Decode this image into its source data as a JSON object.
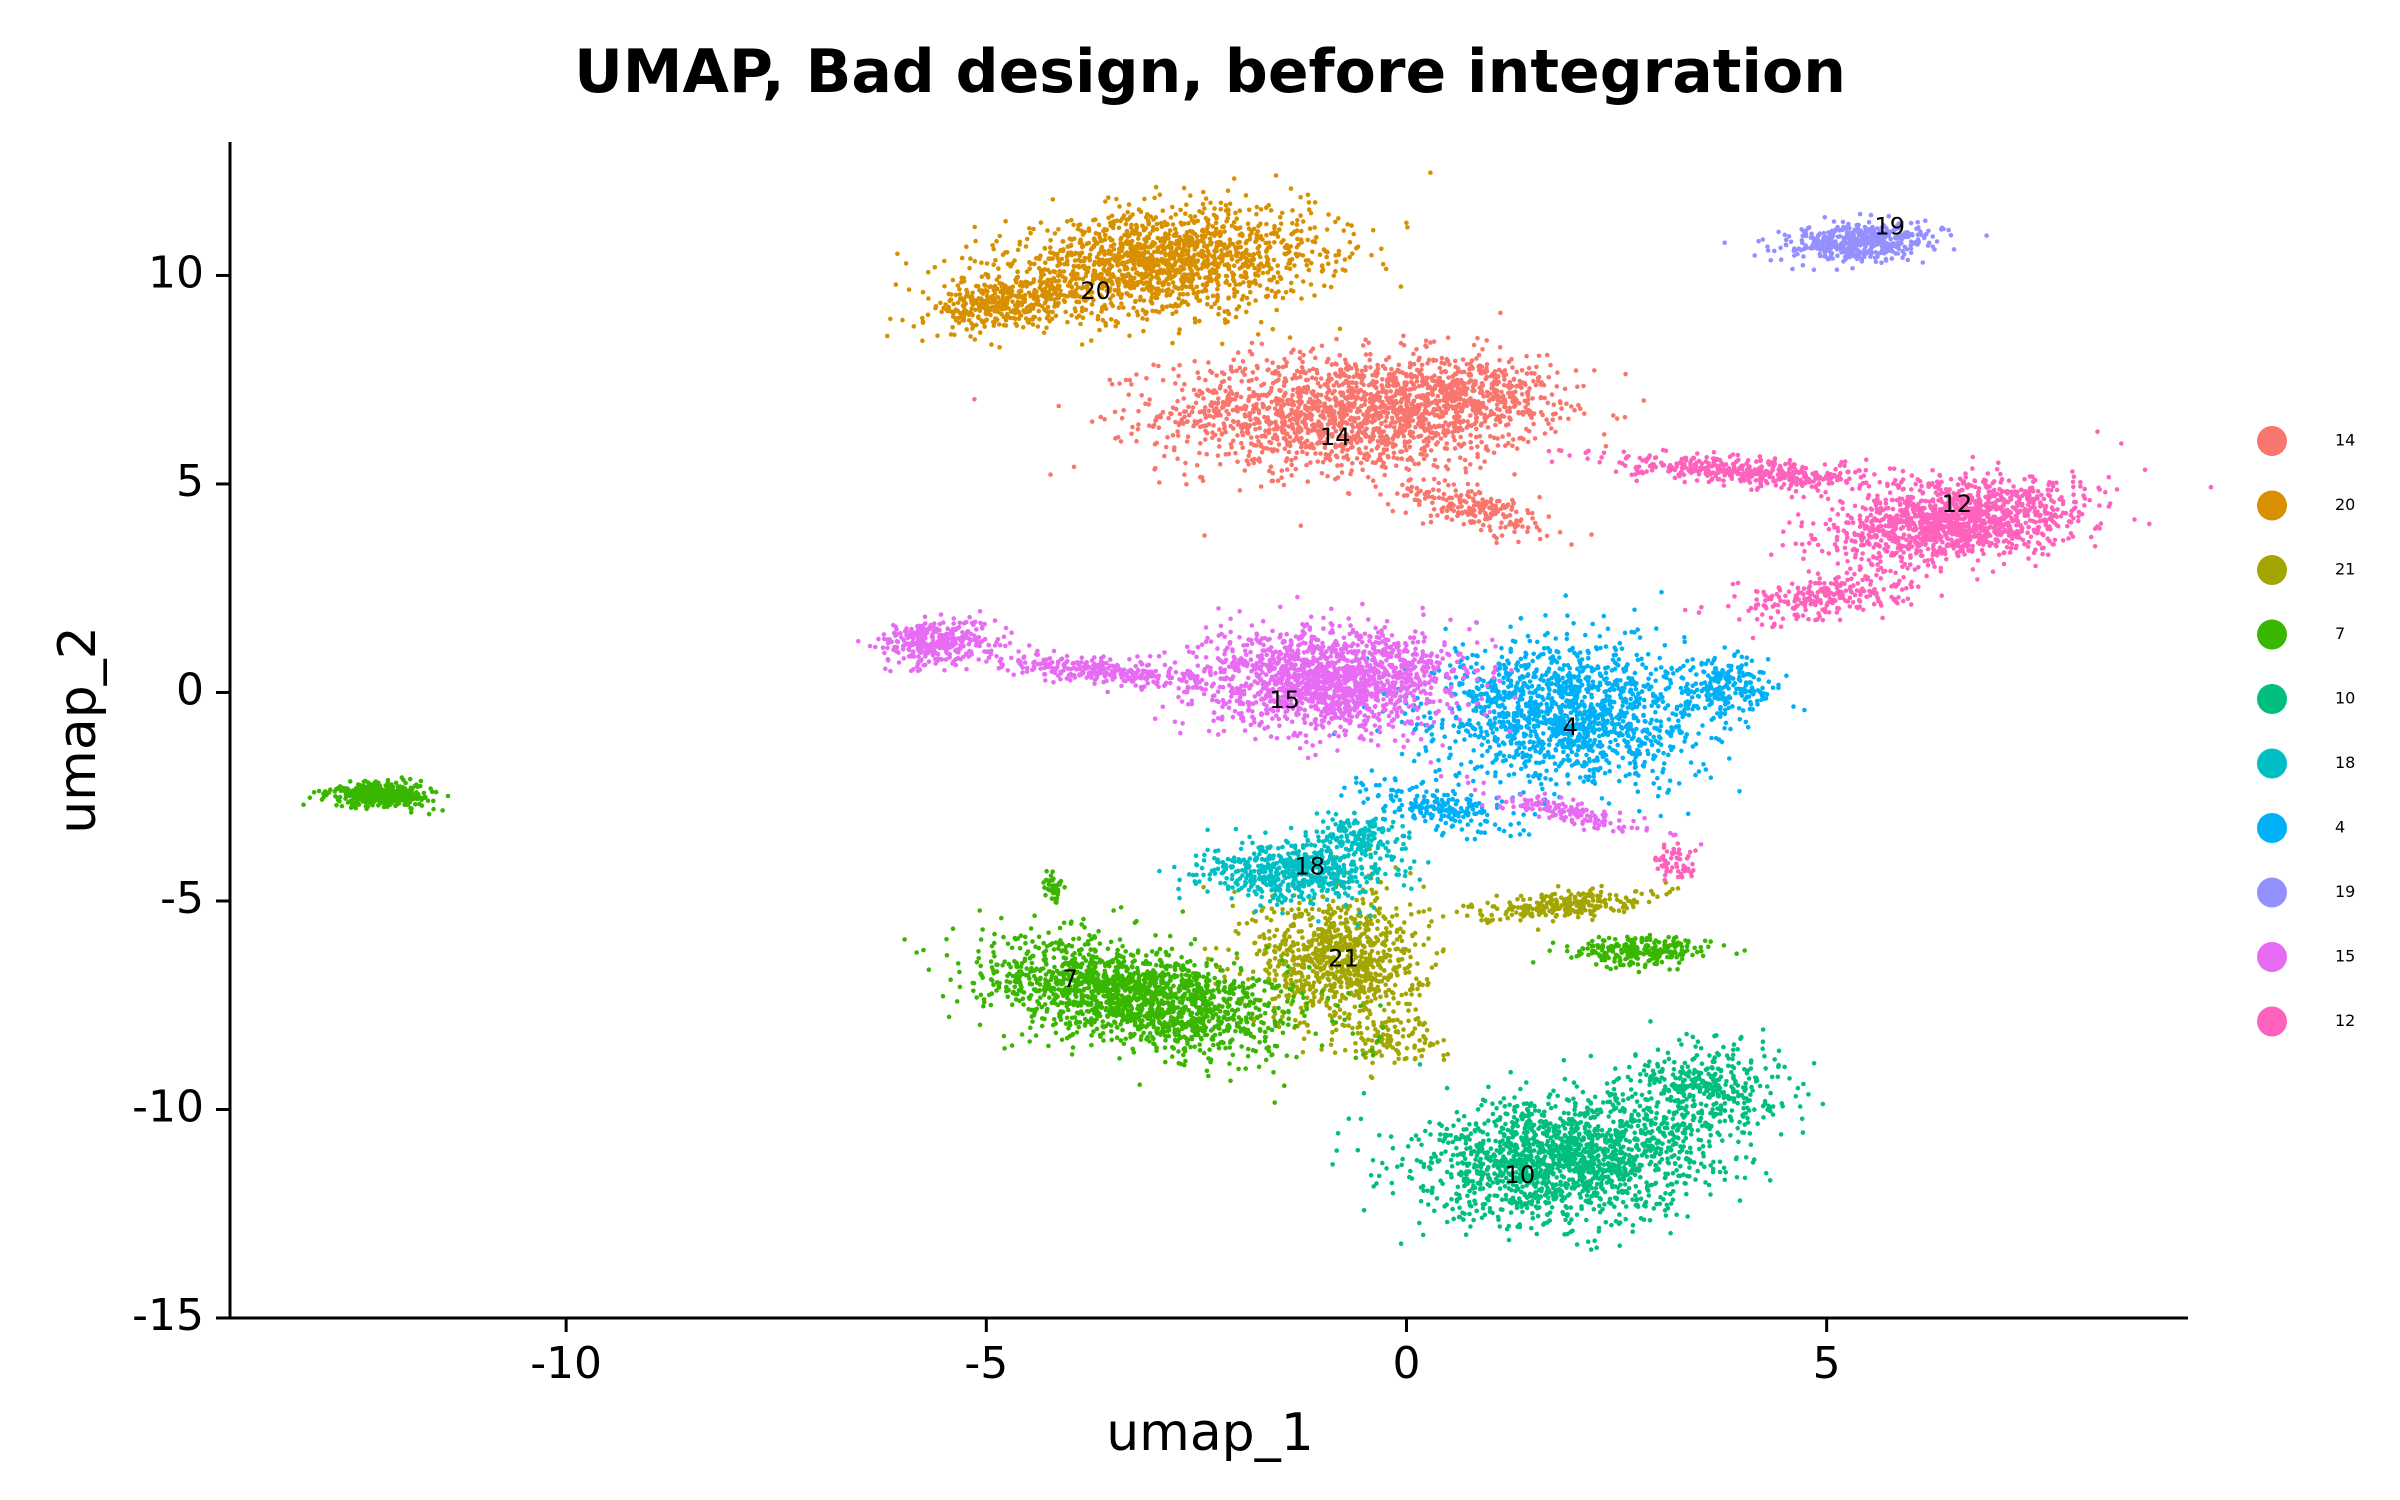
{
  "chart_data": {
    "type": "scatter",
    "title": "UMAP, Bad design, before integration",
    "xlabel": "umap_1",
    "ylabel": "umap_2",
    "xlim": [
      -14,
      9.3
    ],
    "ylim": [
      -15,
      13.2
    ],
    "xticks": [
      -10,
      -5,
      0,
      5
    ],
    "xtick_labels": [
      "-10",
      "-5",
      "0",
      "5"
    ],
    "yticks": [
      10,
      5,
      0,
      -5,
      -10,
      -15
    ],
    "ytick_labels": [
      "10",
      "5",
      "0",
      "-5",
      "-10",
      "-15"
    ],
    "grid": false,
    "legend_position": "right",
    "legend": [
      {
        "label": "14",
        "color": "#F8766D"
      },
      {
        "label": "20",
        "color": "#D89000"
      },
      {
        "label": "21",
        "color": "#A3A500"
      },
      {
        "label": "7",
        "color": "#39B600"
      },
      {
        "label": "10",
        "color": "#00BF7D"
      },
      {
        "label": "18",
        "color": "#00BFC4"
      },
      {
        "label": "4",
        "color": "#00B0F6"
      },
      {
        "label": "19",
        "color": "#9590FF"
      },
      {
        "label": "15",
        "color": "#E76BF3"
      },
      {
        "label": "12",
        "color": "#FF62BC"
      }
    ],
    "clusters": [
      {
        "name": "14",
        "color": "#F8766D",
        "label_pos": [
          -0.85,
          6.1
        ],
        "blobs": [
          [
            -0.7,
            6.7,
            2.2,
            1.4,
            0,
            1700
          ],
          [
            0.8,
            7.2,
            1.0,
            0.9,
            0,
            350
          ],
          [
            0.8,
            4.4,
            1.1,
            0.45,
            -0.5,
            200
          ]
        ]
      },
      {
        "name": "20",
        "color": "#D89000",
        "label_pos": [
          -3.7,
          9.6
        ],
        "blobs": [
          [
            -2.9,
            10.3,
            2.0,
            1.2,
            0.25,
            1600
          ],
          [
            -4.8,
            9.3,
            0.9,
            0.55,
            0.3,
            350
          ]
        ]
      },
      {
        "name": "21",
        "color": "#A3A500",
        "label_pos": [
          -0.75,
          -6.4
        ],
        "blobs": [
          [
            -0.8,
            -6.4,
            1.0,
            1.6,
            0,
            900
          ],
          [
            1.8,
            -5.1,
            1.0,
            0.3,
            0.2,
            250
          ],
          [
            -0.2,
            -8.3,
            0.6,
            0.6,
            0,
            100
          ]
        ]
      },
      {
        "name": "7",
        "color": "#39B600",
        "label_pos": [
          -4.0,
          -6.9
        ],
        "blobs": [
          [
            -3.2,
            -7.3,
            1.9,
            1.1,
            -0.45,
            1700
          ],
          [
            -12.2,
            -2.45,
            0.6,
            0.3,
            0,
            400
          ],
          [
            2.8,
            -6.2,
            0.8,
            0.35,
            0,
            250
          ],
          [
            -4.2,
            -4.7,
            0.12,
            0.5,
            0,
            40
          ]
        ]
      },
      {
        "name": "10",
        "color": "#00BF7D",
        "label_pos": [
          1.35,
          -11.6
        ],
        "blobs": [
          [
            1.9,
            -11.2,
            1.7,
            1.4,
            0.3,
            1700
          ],
          [
            3.6,
            -9.5,
            0.9,
            1.1,
            0,
            400
          ]
        ]
      },
      {
        "name": "18",
        "color": "#00BFC4",
        "label_pos": [
          -1.15,
          -4.2
        ],
        "blobs": [
          [
            -1.3,
            -4.3,
            1.1,
            0.7,
            0,
            600
          ],
          [
            -0.6,
            -3.4,
            0.5,
            0.5,
            0,
            150
          ]
        ]
      },
      {
        "name": "4",
        "color": "#00B0F6",
        "label_pos": [
          1.95,
          -0.85
        ],
        "blobs": [
          [
            1.9,
            -0.5,
            1.6,
            1.7,
            0.2,
            1500
          ],
          [
            3.8,
            0.1,
            0.6,
            0.7,
            0,
            200
          ],
          [
            0.4,
            -2.8,
            1.0,
            0.5,
            -0.4,
            200
          ]
        ]
      },
      {
        "name": "19",
        "color": "#9590FF",
        "label_pos": [
          5.75,
          11.15
        ],
        "blobs": [
          [
            5.4,
            10.8,
            0.9,
            0.45,
            0.15,
            500
          ]
        ]
      },
      {
        "name": "15",
        "color": "#E76BF3",
        "label_pos": [
          -1.45,
          -0.2
        ],
        "blobs": [
          [
            -0.9,
            0.3,
            1.5,
            1.2,
            0.2,
            1600
          ],
          [
            -5.6,
            1.2,
            0.7,
            0.55,
            0.3,
            350
          ],
          [
            -3.5,
            0.5,
            1.3,
            0.3,
            -0.2,
            300
          ],
          [
            2.0,
            -2.9,
            1.2,
            0.25,
            -0.45,
            150
          ]
        ]
      },
      {
        "name": "12",
        "color": "#FF62BC",
        "label_pos": [
          6.55,
          4.5
        ],
        "blobs": [
          [
            6.5,
            4.1,
            1.5,
            0.9,
            0.35,
            1400
          ],
          [
            4.0,
            5.3,
            1.6,
            0.35,
            -0.15,
            450
          ],
          [
            5.0,
            2.3,
            1.1,
            0.5,
            0.35,
            250
          ],
          [
            3.2,
            -4.1,
            0.3,
            0.45,
            0,
            60
          ]
        ]
      }
    ]
  }
}
